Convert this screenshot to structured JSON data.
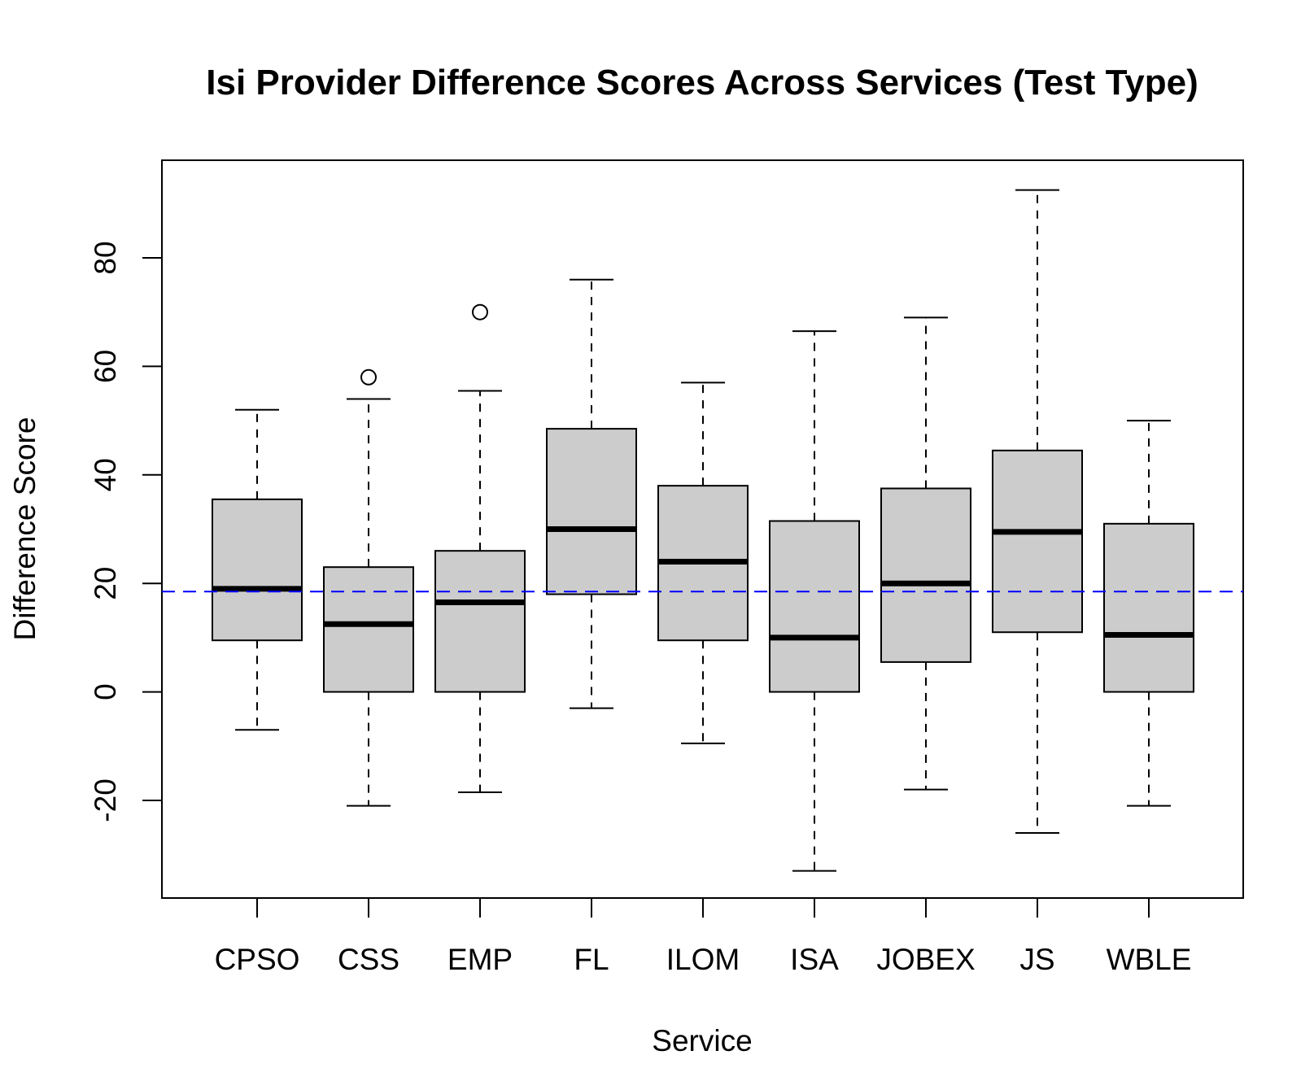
{
  "chart_data": {
    "type": "boxplot",
    "title": "Isi Provider Difference Scores Across Services (Test Type)",
    "xlabel": "Service",
    "ylabel": "Difference Score",
    "ylim": [
      -38,
      98
    ],
    "yticks": [
      -20,
      0,
      20,
      40,
      60,
      80
    ],
    "grid": false,
    "categories": [
      "CPSO",
      "CSS",
      "EMP",
      "FL",
      "ILOM",
      "ISA",
      "JOBEX",
      "JS",
      "WBLE"
    ],
    "boxes": [
      {
        "name": "CPSO",
        "whisker_low": -7,
        "q1": 9.5,
        "median": 19,
        "q3": 35.5,
        "whisker_high": 52,
        "outliers": []
      },
      {
        "name": "CSS",
        "whisker_low": -21,
        "q1": 0,
        "median": 12.5,
        "q3": 23,
        "whisker_high": 54,
        "outliers": [
          58
        ]
      },
      {
        "name": "EMP",
        "whisker_low": -18.5,
        "q1": 0,
        "median": 16.5,
        "q3": 26,
        "whisker_high": 55.5,
        "outliers": [
          70
        ]
      },
      {
        "name": "FL",
        "whisker_low": -3,
        "q1": 18,
        "median": 30,
        "q3": 48.5,
        "whisker_high": 76,
        "outliers": []
      },
      {
        "name": "ILOM",
        "whisker_low": -9.5,
        "q1": 9.5,
        "median": 24,
        "q3": 38,
        "whisker_high": 57,
        "outliers": []
      },
      {
        "name": "ISA",
        "whisker_low": -33,
        "q1": 0,
        "median": 10,
        "q3": 31.5,
        "whisker_high": 66.5,
        "outliers": []
      },
      {
        "name": "JOBEX",
        "whisker_low": -18,
        "q1": 5.5,
        "median": 20,
        "q3": 37.5,
        "whisker_high": 69,
        "outliers": []
      },
      {
        "name": "JS",
        "whisker_low": -26,
        "q1": 11,
        "median": 29.5,
        "q3": 44.5,
        "whisker_high": 92.5,
        "outliers": []
      },
      {
        "name": "WBLE",
        "whisker_low": -21,
        "q1": 0,
        "median": 10.5,
        "q3": 31,
        "whisker_high": 50,
        "outliers": []
      }
    ],
    "reference_line": {
      "y": 18.5,
      "style": "dashed"
    },
    "colors": {
      "box_fill": "#cccccc",
      "line": "#000000",
      "reference_line": "#0000ff"
    }
  }
}
